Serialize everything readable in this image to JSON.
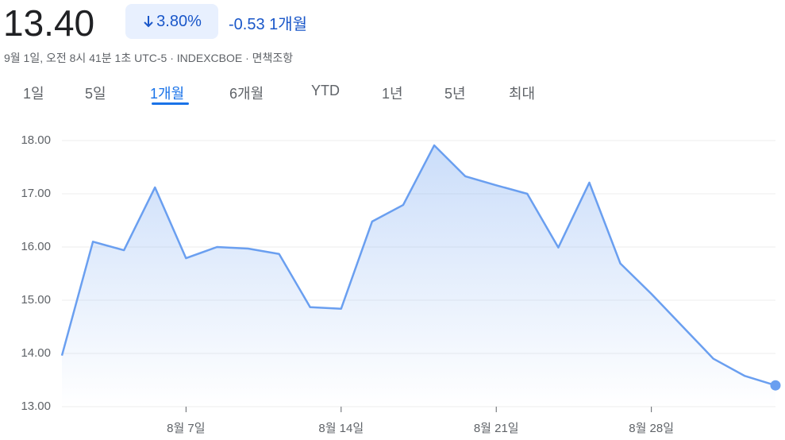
{
  "header": {
    "price": "13.40",
    "percent": "3.80%",
    "change": "-0.53",
    "period": "1개월",
    "subtitle": "9월 1일, 오전 8시 41분 1초 UTC-5 · INDEXCBOE · 면책조항",
    "tabs": [
      "1일",
      "5일",
      "1개월",
      "6개월",
      "YTD",
      "1년",
      "5년",
      "최대"
    ]
  },
  "chart_data": {
    "type": "area",
    "categories": [
      null,
      null,
      null,
      null,
      "8월 7일",
      null,
      null,
      null,
      null,
      "8월 14일",
      null,
      null,
      null,
      null,
      "8월 21일",
      null,
      null,
      null,
      null,
      "8월 28일",
      null,
      null,
      null,
      null
    ],
    "values": [
      13.96,
      16.1,
      15.94,
      17.12,
      15.79,
      16.0,
      15.97,
      15.87,
      14.87,
      14.84,
      16.48,
      16.79,
      17.91,
      17.33,
      17.16,
      17.0,
      15.99,
      17.21,
      15.69,
      15.12,
      14.51,
      13.9,
      13.58,
      13.4
    ],
    "color": "#6a9ff0",
    "ylim": [
      13,
      18
    ],
    "yticks": [
      {
        "value": 13,
        "label": "13.00"
      },
      {
        "value": 14,
        "label": "14.00"
      },
      {
        "value": 15,
        "label": "15.00"
      },
      {
        "value": 16,
        "label": "16.00"
      },
      {
        "value": 17,
        "label": "17.00"
      },
      {
        "value": 18,
        "label": "18.00"
      }
    ],
    "grid": true
  }
}
